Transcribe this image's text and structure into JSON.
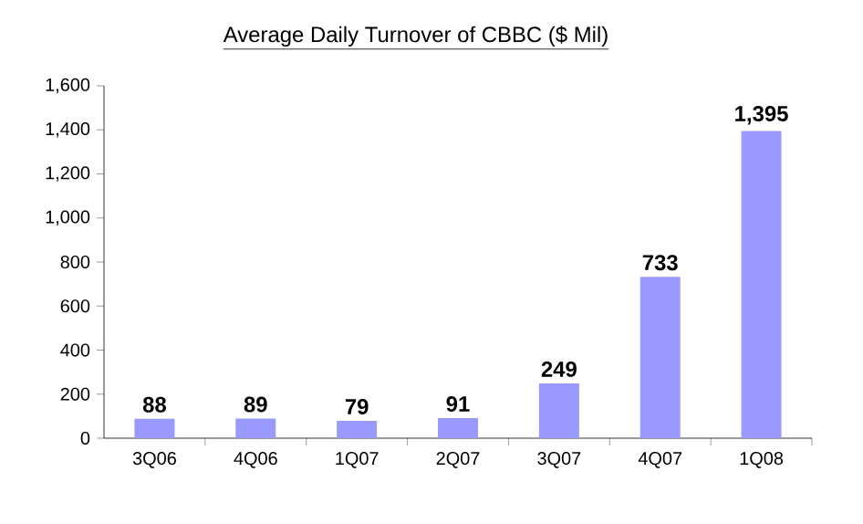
{
  "chart_data": {
    "type": "bar",
    "title": "Average Daily Turnover of CBBC ($ Mil)",
    "categories": [
      "3Q06",
      "4Q06",
      "1Q07",
      "2Q07",
      "3Q07",
      "4Q07",
      "1Q08"
    ],
    "values": [
      88,
      89,
      79,
      91,
      249,
      733,
      1395
    ],
    "value_labels": [
      "88",
      "89",
      "79",
      "91",
      "249",
      "733",
      "1,395"
    ],
    "color": "#9999ff",
    "ylim": [
      0,
      1600
    ],
    "yticks": [
      {
        "value": 0,
        "label": "0"
      },
      {
        "value": 200,
        "label": "200"
      },
      {
        "value": 400,
        "label": "400"
      },
      {
        "value": 600,
        "label": "600"
      },
      {
        "value": 800,
        "label": "800"
      },
      {
        "value": 1000,
        "label": "1,000"
      },
      {
        "value": 1200,
        "label": "1,200"
      },
      {
        "value": 1400,
        "label": "1,400"
      },
      {
        "value": 1600,
        "label": "1,600"
      }
    ],
    "grid": false
  }
}
